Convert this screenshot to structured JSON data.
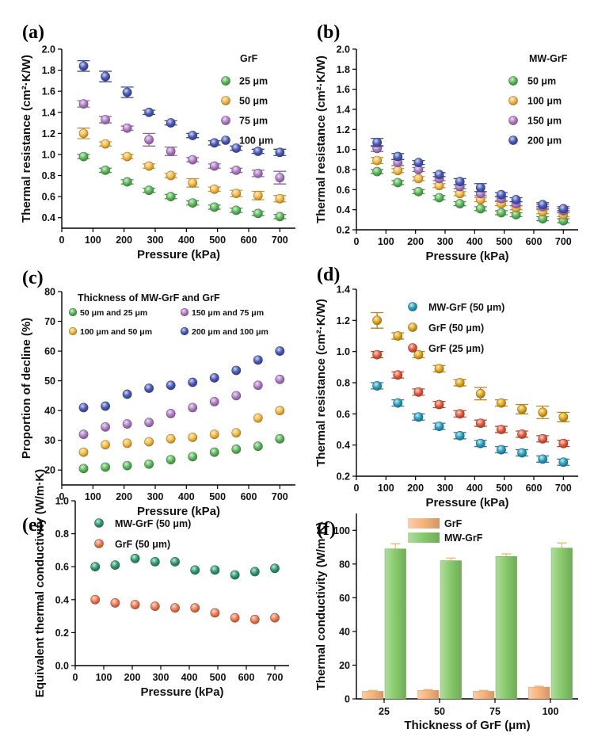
{
  "colors": {
    "green": "#5cb85c",
    "orange": "#f5b942",
    "violet": "#b07cc6",
    "blue": "#4a5ab8",
    "cyan": "#2a9dbd",
    "gold": "#e2a81c",
    "red": "#e35a3c",
    "teal": "#2e9b6e",
    "salmon": "#ef7a52",
    "bar_orange": "#f7b27a",
    "bar_green": "#86c96a"
  },
  "chart_data": [
    {
      "id": "a",
      "panel_label": "(a)",
      "type": "scatter",
      "title": "",
      "xlabel": "Pressure (kPa)",
      "ylabel": "Thermal resistance (cm²·K/W)",
      "xlim": [
        0,
        750
      ],
      "ylim": [
        0.3,
        2.0
      ],
      "xticks": [
        0,
        100,
        200,
        300,
        400,
        500,
        600,
        700
      ],
      "yticks": [
        0.4,
        0.6,
        0.8,
        1.0,
        1.2,
        1.4,
        1.6,
        1.8,
        2.0
      ],
      "xtick_labels": [
        "0",
        "100",
        "200",
        "300",
        "400",
        "500",
        "600",
        "700"
      ],
      "ytick_labels": [
        "0.4",
        "0.6",
        "0.8",
        "1.0",
        "1.2",
        "1.4",
        "1.6",
        "1.8",
        "2.0"
      ],
      "legend_title": "GrF",
      "x": [
        70,
        140,
        210,
        280,
        350,
        420,
        490,
        560,
        630,
        700
      ],
      "series": [
        {
          "name": "25 μm",
          "color": "green",
          "values": [
            0.98,
            0.85,
            0.74,
            0.66,
            0.6,
            0.54,
            0.5,
            0.47,
            0.44,
            0.41
          ],
          "errors": [
            0.02,
            0.02,
            0.02,
            0.02,
            0.02,
            0.02,
            0.02,
            0.02,
            0.02,
            0.02
          ]
        },
        {
          "name": "50 μm",
          "color": "orange",
          "values": [
            1.2,
            1.1,
            0.98,
            0.89,
            0.8,
            0.73,
            0.67,
            0.63,
            0.61,
            0.58
          ],
          "errors": [
            0.05,
            0.02,
            0.02,
            0.02,
            0.02,
            0.04,
            0.02,
            0.03,
            0.04,
            0.03
          ]
        },
        {
          "name": "75 μm",
          "color": "violet",
          "values": [
            1.48,
            1.33,
            1.25,
            1.14,
            1.03,
            0.95,
            0.89,
            0.85,
            0.82,
            0.78
          ],
          "errors": [
            0.03,
            0.03,
            0.02,
            0.06,
            0.04,
            0.02,
            0.02,
            0.02,
            0.03,
            0.06
          ]
        },
        {
          "name": "100 μm",
          "color": "blue",
          "values": [
            1.84,
            1.74,
            1.59,
            1.4,
            1.3,
            1.18,
            1.11,
            1.06,
            1.03,
            1.02
          ],
          "errors": [
            0.05,
            0.05,
            0.05,
            0.02,
            0.02,
            0.02,
            0.02,
            0.02,
            0.02,
            0.03
          ]
        }
      ]
    },
    {
      "id": "b",
      "panel_label": "(b)",
      "type": "scatter",
      "title": "",
      "xlabel": "Pressure (kPa)",
      "ylabel": "Thermal resistance (cm²·K/W)",
      "xlim": [
        0,
        750
      ],
      "ylim": [
        0.2,
        2.0
      ],
      "xticks": [
        0,
        100,
        200,
        300,
        400,
        500,
        600,
        700
      ],
      "yticks": [
        0.2,
        0.4,
        0.6,
        0.8,
        1.0,
        1.2,
        1.4,
        1.6,
        1.8,
        2.0
      ],
      "xtick_labels": [
        "0",
        "100",
        "200",
        "300",
        "400",
        "500",
        "600",
        "700"
      ],
      "ytick_labels": [
        "0.2",
        "0.4",
        "0.6",
        "0.8",
        "1.0",
        "1.2",
        "1.4",
        "1.6",
        "1.8",
        "2.0"
      ],
      "legend_title": "MW-GrF",
      "x": [
        70,
        140,
        210,
        280,
        350,
        420,
        490,
        540,
        630,
        700
      ],
      "series": [
        {
          "name": "50 μm",
          "color": "green",
          "values": [
            0.78,
            0.67,
            0.58,
            0.52,
            0.46,
            0.41,
            0.37,
            0.35,
            0.31,
            0.29
          ],
          "errors": [
            0.02,
            0.02,
            0.02,
            0.02,
            0.02,
            0.02,
            0.02,
            0.02,
            0.02,
            0.02
          ]
        },
        {
          "name": "100 μm",
          "color": "orange",
          "values": [
            0.89,
            0.79,
            0.71,
            0.64,
            0.56,
            0.5,
            0.46,
            0.42,
            0.38,
            0.35
          ],
          "errors": [
            0.03,
            0.02,
            0.02,
            0.02,
            0.02,
            0.02,
            0.02,
            0.02,
            0.02,
            0.02
          ]
        },
        {
          "name": "150 μm",
          "color": "violet",
          "values": [
            1.01,
            0.87,
            0.8,
            0.71,
            0.63,
            0.56,
            0.51,
            0.46,
            0.43,
            0.39
          ],
          "errors": [
            0.03,
            0.03,
            0.02,
            0.02,
            0.02,
            0.02,
            0.02,
            0.02,
            0.02,
            0.02
          ]
        },
        {
          "name": "200 μm",
          "color": "blue",
          "values": [
            1.07,
            0.93,
            0.87,
            0.75,
            0.68,
            0.62,
            0.55,
            0.5,
            0.45,
            0.41
          ],
          "errors": [
            0.04,
            0.03,
            0.02,
            0.02,
            0.03,
            0.04,
            0.02,
            0.02,
            0.02,
            0.02
          ]
        }
      ]
    },
    {
      "id": "c",
      "panel_label": "(c)",
      "type": "scatter",
      "title": "",
      "xlabel": "Pressure (kPa)",
      "ylabel": "Proportion of decline (%)",
      "xlim": [
        0,
        750
      ],
      "ylim": [
        15,
        80
      ],
      "xticks": [
        0,
        100,
        200,
        300,
        400,
        500,
        600,
        700
      ],
      "yticks": [
        20,
        30,
        40,
        50,
        60,
        70,
        80
      ],
      "xtick_labels": [
        "0",
        "100",
        "200",
        "300",
        "400",
        "500",
        "600",
        "700"
      ],
      "ytick_labels": [
        "20",
        "30",
        "40",
        "50",
        "60",
        "70",
        "80"
      ],
      "legend_title": "Thickness of MW-GrF and GrF",
      "x": [
        70,
        140,
        210,
        280,
        350,
        420,
        490,
        560,
        630,
        700
      ],
      "series": [
        {
          "name": "50 μm and 25 μm",
          "color": "green",
          "values": [
            20.5,
            21.0,
            21.5,
            22.0,
            23.5,
            24.5,
            26.0,
            27.0,
            28.0,
            30.5
          ]
        },
        {
          "name": "100 μm and 50 μm",
          "color": "orange",
          "values": [
            26.0,
            28.5,
            29.0,
            29.5,
            30.5,
            31.0,
            32.0,
            32.5,
            37.5,
            40.0
          ]
        },
        {
          "name": "150 μm and 75 μm",
          "color": "violet",
          "values": [
            32.0,
            34.5,
            35.5,
            36.0,
            39.0,
            41.0,
            43.0,
            45.0,
            48.5,
            50.5
          ]
        },
        {
          "name": "200 μm and 100 μm",
          "color": "blue",
          "values": [
            41.0,
            41.5,
            45.5,
            47.5,
            48.5,
            49.5,
            51.0,
            53.5,
            57.0,
            60.0
          ]
        }
      ]
    },
    {
      "id": "d",
      "panel_label": "(d)",
      "type": "scatter",
      "title": "",
      "xlabel": "Pressure (kPa)",
      "ylabel": "Thermal resistance (cm²·K/W)",
      "xlim": [
        0,
        750
      ],
      "ylim": [
        0.2,
        1.4
      ],
      "xticks": [
        0,
        100,
        200,
        300,
        400,
        500,
        600,
        700
      ],
      "yticks": [
        0.2,
        0.4,
        0.6,
        0.8,
        1.0,
        1.2,
        1.4
      ],
      "xtick_labels": [
        "0",
        "100",
        "200",
        "300",
        "400",
        "500",
        "600",
        "700"
      ],
      "ytick_labels": [
        "0.2",
        "0.4",
        "0.6",
        "0.8",
        "1.0",
        "1.2",
        "1.4"
      ],
      "legend_title": "",
      "x": [
        70,
        140,
        210,
        280,
        350,
        420,
        490,
        560,
        630,
        700
      ],
      "series": [
        {
          "name": "MW-GrF (50 μm)",
          "color": "cyan",
          "values": [
            0.78,
            0.67,
            0.58,
            0.52,
            0.46,
            0.41,
            0.37,
            0.35,
            0.31,
            0.29
          ],
          "errors": [
            0.02,
            0.02,
            0.02,
            0.02,
            0.02,
            0.02,
            0.02,
            0.02,
            0.02,
            0.02
          ]
        },
        {
          "name": "GrF (50 μm)",
          "color": "gold",
          "values": [
            1.2,
            1.1,
            0.98,
            0.89,
            0.8,
            0.73,
            0.67,
            0.63,
            0.61,
            0.58
          ],
          "errors": [
            0.05,
            0.02,
            0.02,
            0.02,
            0.02,
            0.04,
            0.02,
            0.03,
            0.04,
            0.03
          ]
        },
        {
          "name": "GrF (25 μm)",
          "color": "red",
          "values": [
            0.98,
            0.85,
            0.74,
            0.66,
            0.6,
            0.54,
            0.5,
            0.47,
            0.44,
            0.41
          ],
          "errors": [
            0.02,
            0.02,
            0.02,
            0.02,
            0.02,
            0.02,
            0.02,
            0.02,
            0.02,
            0.02
          ]
        }
      ]
    },
    {
      "id": "e",
      "panel_label": "(e)",
      "type": "scatter",
      "title": "",
      "xlabel": "Pressure (kPa)",
      "ylabel": "Equivalent thermal conductivity (W/m·K)",
      "xlim": [
        0,
        750
      ],
      "ylim": [
        0.0,
        1.0
      ],
      "xticks": [
        0,
        100,
        200,
        300,
        400,
        500,
        600,
        700
      ],
      "yticks": [
        0.0,
        0.2,
        0.4,
        0.6,
        0.8,
        1.0
      ],
      "xtick_labels": [
        "0",
        "100",
        "200",
        "300",
        "400",
        "500",
        "600",
        "700"
      ],
      "ytick_labels": [
        "0.0",
        "0.2",
        "0.4",
        "0.6",
        "0.8",
        "1.0"
      ],
      "legend_title": "",
      "x": [
        70,
        140,
        210,
        280,
        350,
        420,
        490,
        560,
        630,
        700
      ],
      "series": [
        {
          "name": "MW-GrF (50 μm)",
          "color": "teal",
          "values": [
            0.6,
            0.61,
            0.65,
            0.63,
            0.63,
            0.58,
            0.58,
            0.55,
            0.57,
            0.59
          ]
        },
        {
          "name": "GrF (50 μm)",
          "color": "salmon",
          "values": [
            0.4,
            0.38,
            0.37,
            0.36,
            0.35,
            0.35,
            0.32,
            0.29,
            0.28,
            0.29
          ]
        }
      ]
    },
    {
      "id": "f",
      "panel_label": "(f)",
      "type": "bar",
      "title": "",
      "xlabel": "Thickness of GrF (μm)",
      "ylabel": "Thermal conductivity (W/m·K)",
      "ylim": [
        0,
        110
      ],
      "yticks": [
        0,
        20,
        40,
        60,
        80,
        100
      ],
      "ytick_labels": [
        "0",
        "20",
        "40",
        "60",
        "80",
        "100"
      ],
      "categories": [
        "25",
        "50",
        "75",
        "100"
      ],
      "series": [
        {
          "name": "GrF",
          "color": "bar_orange",
          "values": [
            4.5,
            5.0,
            4.5,
            7.0
          ],
          "errors": [
            0.5,
            0.5,
            0.5,
            0.5
          ]
        },
        {
          "name": "MW-GrF",
          "color": "bar_green",
          "values": [
            89,
            82,
            84.5,
            89.5
          ],
          "errors": [
            3,
            1.5,
            1.5,
            3
          ]
        }
      ]
    }
  ]
}
